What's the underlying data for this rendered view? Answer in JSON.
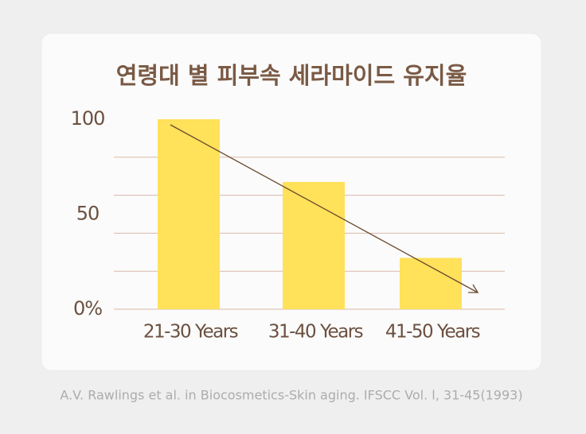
{
  "chart_data": {
    "type": "bar",
    "title": "연령대 별 피부속 세라마이드 유지율",
    "categories": [
      "21-30 Years",
      "31-40 Years",
      "41-50 Years"
    ],
    "values": [
      100,
      67,
      27
    ],
    "color": "#ffe15a",
    "ylim": [
      0,
      100
    ],
    "yticks": [
      {
        "value": 0,
        "label": "0%"
      },
      50,
      100
    ],
    "grid_values": [
      0,
      20,
      40,
      60,
      80
    ],
    "grid": true,
    "source": "A.V. Rawlings et al. in Biocosmetics-Skin aging. IFSCC Vol. l, 31-45(1993)"
  }
}
